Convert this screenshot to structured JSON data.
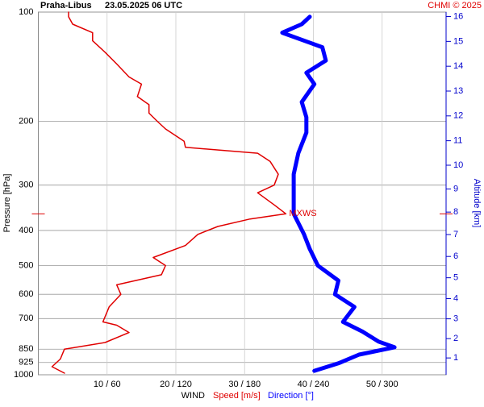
{
  "chart_data": {
    "type": "profile",
    "title": "Praha-Libus",
    "subtitle": "23.05.2025 06 UTC",
    "credit": "CHMI © 2025",
    "ylabel": "Pressure [hPa]",
    "y2label": "Altitude [km]",
    "xlabel": "WIND",
    "annotation": "MXWS",
    "ylim": [
      100,
      1000
    ],
    "yscale": "log",
    "yticks": [
      100,
      200,
      300,
      400,
      500,
      600,
      700,
      850,
      925,
      1000
    ],
    "y2ticks": [
      1,
      2,
      3,
      4,
      5,
      6,
      7,
      8,
      9,
      10,
      11,
      12,
      13,
      14,
      15,
      16
    ],
    "xlim": [
      0,
      59.3
    ],
    "x2lim": [
      0,
      356
    ],
    "xticks": [
      {
        "value": 10,
        "label": "10 / 60"
      },
      {
        "value": 20,
        "label": "20 / 120"
      },
      {
        "value": 30,
        "label": "30 / 180"
      },
      {
        "value": 40,
        "label": "40 / 240"
      },
      {
        "value": 50,
        "label": "50 / 300"
      }
    ],
    "grid": true,
    "series": [
      {
        "name": "Speed [m/s]",
        "color": "#e00000",
        "pressure": [
          990,
          950,
          905,
          850,
          815,
          765,
          730,
          715,
          650,
          600,
          565,
          530,
          500,
          475,
          440,
          410,
          390,
          372,
          360,
          340,
          315,
          300,
          280,
          258,
          245,
          236,
          227,
          210,
          200,
          190,
          180,
          171,
          158,
          151,
          139,
          129,
          120,
          114,
          108,
          103,
          100
        ],
        "values": [
          3.8,
          2,
          3.2,
          3.8,
          9.7,
          13.2,
          11.4,
          9.4,
          10.3,
          12,
          11.4,
          17.9,
          18.5,
          16.7,
          21.4,
          23.2,
          26.1,
          30.8,
          36,
          34.3,
          31.9,
          34.3,
          34.9,
          33.7,
          31.9,
          21.4,
          21.2,
          18.5,
          17.3,
          16.1,
          16.1,
          14.4,
          15,
          13.2,
          11.4,
          9.7,
          7.9,
          7.9,
          5,
          4.4,
          4.4
        ]
      },
      {
        "name": "Direction [°]",
        "color": "#0000ff",
        "axis": "x2",
        "pressure": [
          975,
          930,
          880,
          840,
          810,
          760,
          715,
          650,
          600,
          550,
          500,
          450,
          410,
          360,
          315,
          280,
          245,
          215,
          195,
          177,
          158,
          147,
          136,
          125,
          114,
          108,
          103
        ],
        "values": [
          241,
          262,
          280,
          311,
          297,
          283,
          266,
          276,
          259,
          262,
          244,
          237,
          232,
          223,
          223,
          223,
          227,
          234,
          234,
          230,
          241,
          234,
          251,
          248,
          213,
          230,
          237
        ]
      }
    ]
  }
}
